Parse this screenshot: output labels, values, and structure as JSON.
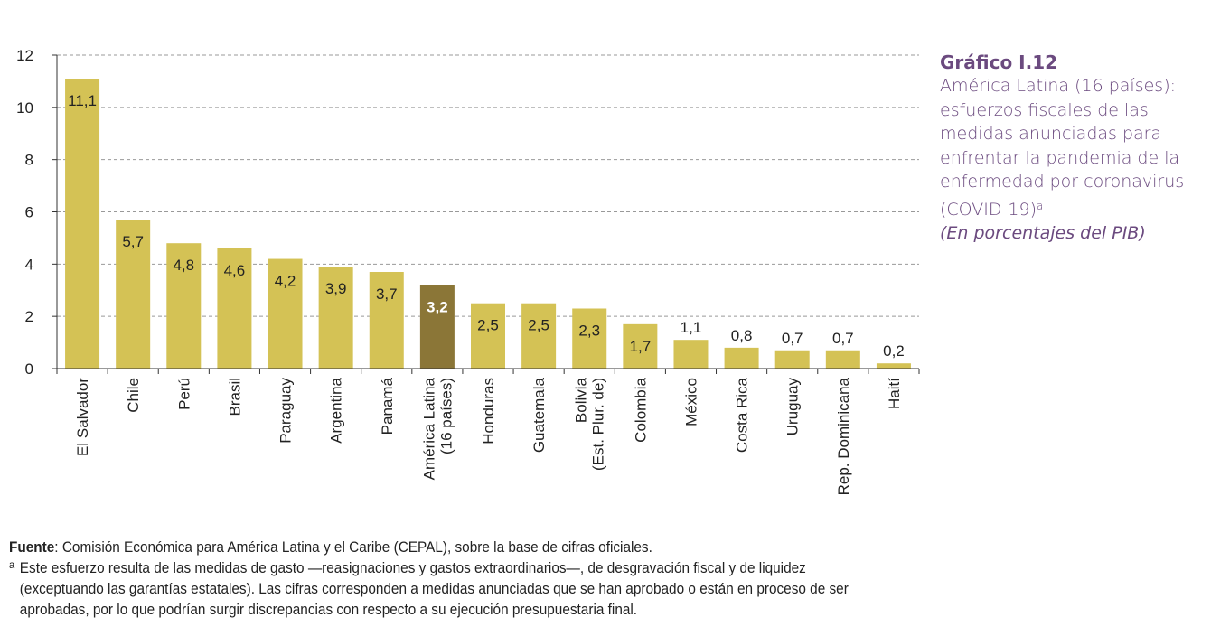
{
  "caption": {
    "number": "Gráfico I.12",
    "title": "América Latina (16 países): esfuerzos fiscales de las medidas anunciadas para enfrentar la pandemia de la enfermedad por coronavirus (COVID-19)",
    "title_footnote_mark": "a",
    "units": "(En porcentajes del PIB)"
  },
  "notes": {
    "source_label": "Fuente",
    "source_text": ": Comisión Económica para América Latina y el Caribe (CEPAL), sobre la base de cifras oficiales.",
    "footnote_mark": "a",
    "footnote_text": "Este esfuerzo resulta de las medidas de gasto —reasignaciones y gastos extraordinarios—, de desgravación fiscal y de liquidez (exceptuando las garantías estatales). Las cifras corresponden a medidas anunciadas que se han aprobado o están en proceso de ser aprobadas, por lo que podrían surgir discrepancias con respecto a su ejecución presupuestaria final."
  },
  "chart_data": {
    "type": "bar",
    "categories": [
      "El Salvador",
      "Chile",
      "Perú",
      "Brasil",
      "Paraguay",
      "Argentina",
      "Panamá",
      "América Latina\n(16 países)",
      "Honduras",
      "Guatemala",
      "Bolivia\n(Est. Plur. de)",
      "Colombia",
      "México",
      "Costa Rica",
      "Uruguay",
      "Rep. Dominicana",
      "Haití"
    ],
    "values": [
      11.1,
      5.7,
      4.8,
      4.6,
      4.2,
      3.9,
      3.7,
      3.2,
      2.5,
      2.5,
      2.3,
      1.7,
      1.1,
      0.8,
      0.7,
      0.7,
      0.2
    ],
    "value_labels": [
      "11,1",
      "5,7",
      "4,8",
      "4,6",
      "4,2",
      "3,9",
      "3,7",
      "3,2",
      "2,5",
      "2,5",
      "2,3",
      "1,7",
      "1,1",
      "0,8",
      "0,7",
      "0,7",
      "0,2"
    ],
    "highlight_index": 7,
    "ylim": [
      0,
      12
    ],
    "yticks": [
      0,
      2,
      4,
      6,
      8,
      10,
      12
    ],
    "grid": true,
    "colors": {
      "bar": "#d4c255",
      "highlight": "#8b7637",
      "grid": "#999999"
    }
  }
}
